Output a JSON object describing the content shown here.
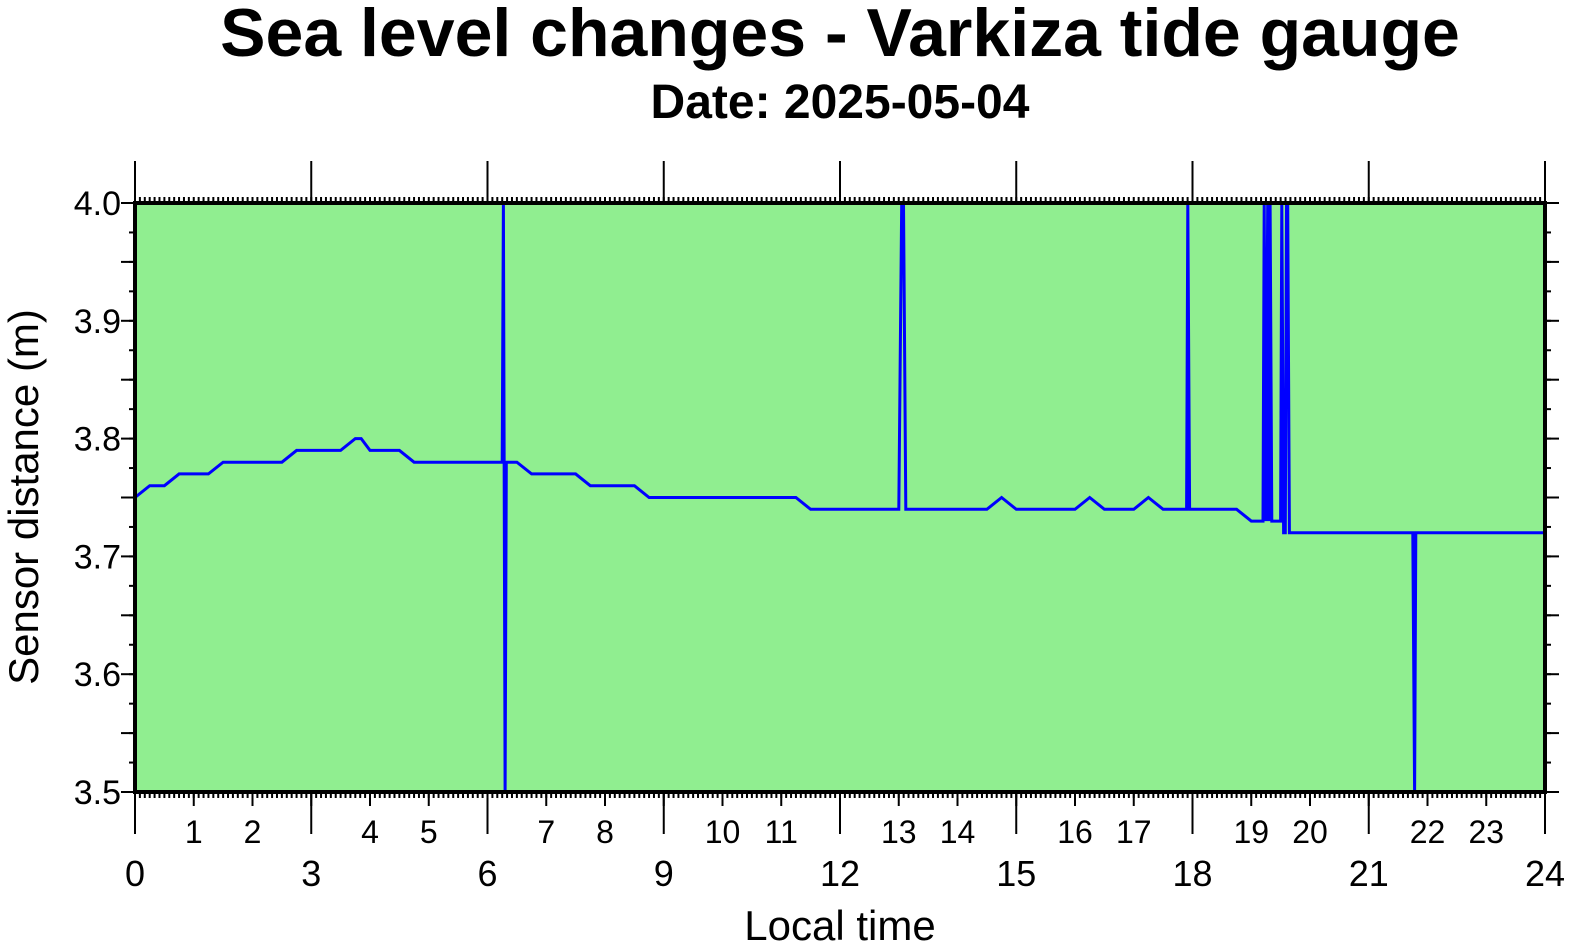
{
  "chart_data": {
    "type": "line",
    "title": "Sea level changes - Varkiza tide gauge",
    "subtitle": "Date: 2025-05-04",
    "xlabel": "Local time",
    "ylabel": "Sensor distance (m)",
    "xlim": [
      0,
      24
    ],
    "ylim": [
      3.5,
      4.0
    ],
    "x_major_ticks": [
      0,
      3,
      6,
      9,
      12,
      15,
      18,
      21,
      24
    ],
    "x_minor_labels": [
      1,
      2,
      4,
      5,
      7,
      8,
      10,
      11,
      13,
      14,
      16,
      17,
      19,
      20,
      22,
      23
    ],
    "y_ticks": [
      "3.5",
      "3.6",
      "3.7",
      "3.8",
      "3.9",
      "4.0"
    ],
    "grid": false,
    "colors": {
      "plot_background": "#90ee90",
      "line": "#0000ff",
      "frame": "#000000"
    },
    "series": [
      {
        "x": [
          0.0,
          0.25,
          0.5,
          0.75,
          1.0,
          1.25,
          1.5,
          1.75,
          2.0,
          2.25,
          2.5,
          2.75,
          3.0,
          3.25,
          3.5,
          3.75,
          3.85,
          4.0,
          4.25,
          4.5,
          4.75,
          5.0,
          5.25,
          5.5,
          5.75,
          6.0,
          6.15,
          6.25,
          6.27,
          6.3,
          6.32,
          6.35,
          6.5,
          6.75,
          7.0,
          7.25,
          7.5,
          7.75,
          8.0,
          8.25,
          8.5,
          8.75,
          9.0,
          9.25,
          9.5,
          9.75,
          10.0,
          10.25,
          10.5,
          10.75,
          11.0,
          11.25,
          11.5,
          11.75,
          12.0,
          12.25,
          12.5,
          12.75,
          13.0,
          13.05,
          13.08,
          13.12,
          13.15,
          13.25,
          13.5,
          13.75,
          14.0,
          14.25,
          14.5,
          14.75,
          15.0,
          15.25,
          15.5,
          15.75,
          16.0,
          16.25,
          16.5,
          16.75,
          17.0,
          17.25,
          17.5,
          17.75,
          17.9,
          17.92,
          17.95,
          18.0,
          18.25,
          18.5,
          18.75,
          19.0,
          19.2,
          19.22,
          19.25,
          19.28,
          19.3,
          19.32,
          19.35,
          19.4,
          19.5,
          19.52,
          19.55,
          19.58,
          19.6,
          19.62,
          19.65,
          19.68,
          19.75,
          20.0,
          20.25,
          20.5,
          20.75,
          21.0,
          21.25,
          21.5,
          21.75,
          21.78,
          21.8,
          21.82,
          21.85,
          22.0,
          22.25,
          22.5,
          22.75,
          23.0,
          23.25,
          23.5,
          23.75,
          24.0
        ],
        "y": [
          3.75,
          3.76,
          3.76,
          3.77,
          3.77,
          3.77,
          3.78,
          3.78,
          3.78,
          3.78,
          3.78,
          3.79,
          3.79,
          3.79,
          3.79,
          3.8,
          3.8,
          3.79,
          3.79,
          3.79,
          3.78,
          3.78,
          3.78,
          3.78,
          3.78,
          3.78,
          3.78,
          3.78,
          4.0,
          3.5,
          3.78,
          3.78,
          3.78,
          3.77,
          3.77,
          3.77,
          3.77,
          3.76,
          3.76,
          3.76,
          3.76,
          3.75,
          3.75,
          3.75,
          3.75,
          3.75,
          3.75,
          3.75,
          3.75,
          3.75,
          3.75,
          3.75,
          3.74,
          3.74,
          3.74,
          3.74,
          3.74,
          3.74,
          3.74,
          4.0,
          4.0,
          3.74,
          3.74,
          3.74,
          3.74,
          3.74,
          3.74,
          3.74,
          3.74,
          3.75,
          3.74,
          3.74,
          3.74,
          3.74,
          3.74,
          3.75,
          3.74,
          3.74,
          3.74,
          3.75,
          3.74,
          3.74,
          3.74,
          4.0,
          3.74,
          3.74,
          3.74,
          3.74,
          3.74,
          3.73,
          3.73,
          4.0,
          3.73,
          4.0,
          3.73,
          4.0,
          3.73,
          3.73,
          3.73,
          4.0,
          3.72,
          3.72,
          4.0,
          4.0,
          3.72,
          3.72,
          3.72,
          3.72,
          3.72,
          3.72,
          3.72,
          3.72,
          3.72,
          3.72,
          3.72,
          3.5,
          3.72,
          3.72,
          3.72,
          3.72,
          3.72,
          3.72,
          3.72,
          3.72,
          3.72,
          3.72,
          3.72,
          3.72
        ]
      }
    ]
  }
}
